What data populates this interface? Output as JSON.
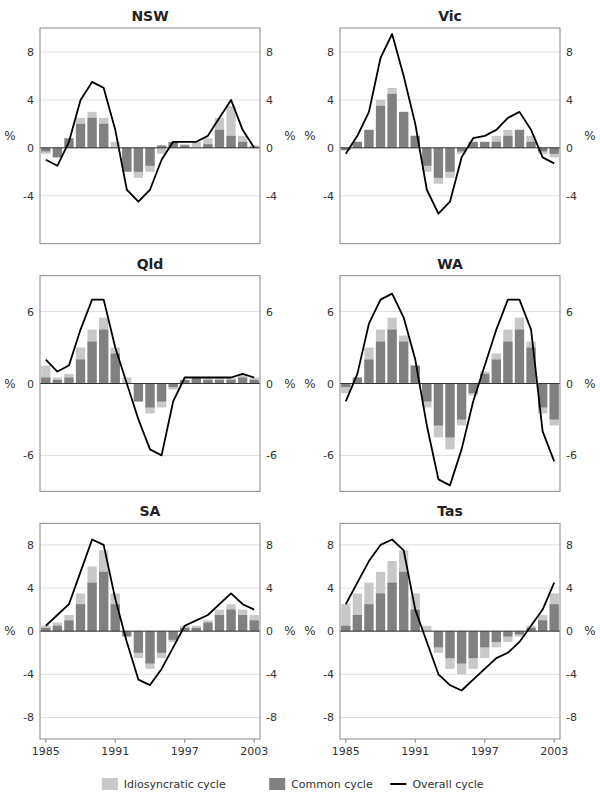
{
  "chart_data": [
    {
      "type": "bar",
      "title": "NSW",
      "ylabel": "%",
      "y2label": "%",
      "x": [
        1985,
        1986,
        1987,
        1988,
        1989,
        1990,
        1991,
        1992,
        1993,
        1994,
        1995,
        1996,
        1997,
        1998,
        1999,
        2000,
        2001,
        2002,
        2003
      ],
      "xlim": [
        1984.5,
        2003.5
      ],
      "xticks": [
        1985,
        1991,
        1997,
        2003
      ],
      "ylim": [
        -8,
        10
      ],
      "yticks": [
        -4,
        0,
        4,
        8
      ],
      "y2lim": [
        -8,
        10
      ],
      "y2ticks": [
        -4,
        0,
        4,
        8
      ],
      "grid": true,
      "tick_labels": "y",
      "series": [
        {
          "name": "Idiosyncratic cycle",
          "type": "bar",
          "color": "#c8c8c8",
          "values": [
            -0.5,
            -0.3,
            0.5,
            2.5,
            3.0,
            2.5,
            0.5,
            -1.5,
            -2.5,
            -2.0,
            -0.5,
            0.5,
            0.3,
            0.5,
            0.8,
            2.5,
            3.5,
            1.0,
            0.2
          ]
        },
        {
          "name": "Common cycle",
          "type": "bar",
          "color": "#808080",
          "values": [
            -0.3,
            -0.8,
            0.8,
            2.0,
            2.5,
            2.0,
            0.0,
            -2.0,
            -2.0,
            -1.5,
            0.2,
            0.5,
            0.2,
            0.0,
            0.3,
            1.5,
            1.0,
            0.5,
            0.1
          ]
        },
        {
          "name": "Overall cycle",
          "type": "line",
          "color": "#000000",
          "values": [
            -1.0,
            -1.5,
            0.5,
            4.0,
            5.5,
            5.0,
            1.5,
            -3.5,
            -4.5,
            -3.5,
            -1.0,
            0.5,
            0.5,
            0.5,
            1.0,
            2.5,
            4.0,
            1.5,
            0.0
          ]
        }
      ]
    },
    {
      "type": "bar",
      "title": "Vic",
      "ylabel": "%",
      "y2label": "%",
      "x": [
        1985,
        1986,
        1987,
        1988,
        1989,
        1990,
        1991,
        1992,
        1993,
        1994,
        1995,
        1996,
        1997,
        1998,
        1999,
        2000,
        2001,
        2002,
        2003
      ],
      "xlim": [
        1984.5,
        2003.5
      ],
      "xticks": [
        1985,
        1991,
        1997,
        2003
      ],
      "ylim": [
        -8,
        10
      ],
      "yticks": [
        -4,
        0,
        4,
        8
      ],
      "y2lim": [
        -8,
        10
      ],
      "y2ticks": [
        -4,
        0,
        4,
        8
      ],
      "grid": true,
      "tick_labels": "y",
      "series": [
        {
          "name": "Idiosyncratic cycle",
          "type": "bar",
          "color": "#c8c8c8",
          "values": [
            -0.2,
            0.5,
            1.5,
            4.0,
            5.0,
            3.0,
            1.0,
            -2.0,
            -3.0,
            -2.5,
            -0.5,
            0.3,
            0.5,
            1.0,
            1.5,
            1.5,
            1.0,
            -0.5,
            -0.8
          ]
        },
        {
          "name": "Common cycle",
          "type": "bar",
          "color": "#808080",
          "values": [
            -0.2,
            0.5,
            1.5,
            3.5,
            4.5,
            3.0,
            1.0,
            -1.5,
            -2.5,
            -2.0,
            -0.3,
            0.5,
            0.5,
            0.5,
            1.0,
            1.5,
            0.5,
            -0.3,
            -0.5
          ]
        },
        {
          "name": "Overall cycle",
          "type": "line",
          "color": "#000000",
          "values": [
            -0.5,
            1.0,
            3.0,
            7.5,
            9.5,
            6.0,
            2.0,
            -3.5,
            -5.5,
            -4.5,
            -0.8,
            0.8,
            1.0,
            1.5,
            2.5,
            3.0,
            1.5,
            -0.8,
            -1.3
          ]
        }
      ]
    },
    {
      "type": "bar",
      "title": "Qld",
      "ylabel": "%",
      "y2label": "%",
      "x": [
        1985,
        1986,
        1987,
        1988,
        1989,
        1990,
        1991,
        1992,
        1993,
        1994,
        1995,
        1996,
        1997,
        1998,
        1999,
        2000,
        2001,
        2002,
        2003
      ],
      "xlim": [
        1984.5,
        2003.5
      ],
      "xticks": [
        1985,
        1991,
        1997,
        2003
      ],
      "ylim": [
        -9,
        9
      ],
      "yticks": [
        -6,
        0,
        6
      ],
      "y2lim": [
        -9,
        9
      ],
      "y2ticks": [
        -6,
        0,
        6
      ],
      "grid": true,
      "tick_labels": "y",
      "series": [
        {
          "name": "Idiosyncratic cycle",
          "type": "bar",
          "color": "#c8c8c8",
          "values": [
            1.5,
            0.5,
            0.8,
            3.0,
            4.5,
            5.5,
            3.0,
            0.5,
            -1.5,
            -2.5,
            -2.0,
            -0.5,
            0.3,
            0.5,
            0.5,
            0.5,
            0.5,
            0.8,
            0.5
          ]
        },
        {
          "name": "Common cycle",
          "type": "bar",
          "color": "#808080",
          "values": [
            0.5,
            0.3,
            0.5,
            2.0,
            3.5,
            4.5,
            2.5,
            0.0,
            -1.5,
            -2.0,
            -1.5,
            -0.3,
            0.3,
            0.5,
            0.3,
            0.3,
            0.3,
            0.5,
            0.3
          ]
        },
        {
          "name": "Overall cycle",
          "type": "line",
          "color": "#000000",
          "values": [
            2.0,
            1.0,
            1.5,
            4.5,
            7.0,
            7.0,
            3.0,
            0.0,
            -3.0,
            -5.5,
            -6.0,
            -1.5,
            0.5,
            0.5,
            0.5,
            0.5,
            0.5,
            0.8,
            0.5
          ]
        }
      ]
    },
    {
      "type": "bar",
      "title": "WA",
      "ylabel": "%",
      "y2label": "%",
      "x": [
        1985,
        1986,
        1987,
        1988,
        1989,
        1990,
        1991,
        1992,
        1993,
        1994,
        1995,
        1996,
        1997,
        1998,
        1999,
        2000,
        2001,
        2002,
        2003
      ],
      "xlim": [
        1984.5,
        2003.5
      ],
      "xticks": [
        1985,
        1991,
        1997,
        2003
      ],
      "ylim": [
        -9,
        9
      ],
      "yticks": [
        -6,
        0,
        6
      ],
      "y2lim": [
        -9,
        9
      ],
      "y2ticks": [
        -6,
        0,
        6
      ],
      "grid": true,
      "tick_labels": "y",
      "series": [
        {
          "name": "Idiosyncratic cycle",
          "type": "bar",
          "color": "#c8c8c8",
          "values": [
            -0.8,
            0.5,
            3.0,
            4.5,
            5.5,
            4.0,
            1.5,
            -2.0,
            -4.5,
            -5.5,
            -3.5,
            -1.0,
            1.0,
            2.5,
            4.5,
            5.5,
            3.5,
            -2.5,
            -3.5
          ]
        },
        {
          "name": "Common cycle",
          "type": "bar",
          "color": "#808080",
          "values": [
            -0.3,
            0.5,
            2.0,
            3.5,
            4.5,
            3.5,
            1.5,
            -1.5,
            -3.5,
            -4.5,
            -3.0,
            -0.8,
            0.8,
            2.0,
            3.5,
            4.5,
            3.0,
            -2.0,
            -3.0
          ]
        },
        {
          "name": "Overall cycle",
          "type": "line",
          "color": "#000000",
          "values": [
            -1.5,
            0.8,
            5.0,
            7.0,
            7.5,
            5.5,
            2.0,
            -3.5,
            -8.0,
            -8.5,
            -5.5,
            -1.5,
            1.5,
            4.5,
            7.0,
            7.0,
            4.5,
            -4.0,
            -6.5
          ]
        }
      ]
    },
    {
      "type": "bar",
      "title": "SA",
      "ylabel": "%",
      "y2label": "%",
      "x": [
        1985,
        1986,
        1987,
        1988,
        1989,
        1990,
        1991,
        1992,
        1993,
        1994,
        1995,
        1996,
        1997,
        1998,
        1999,
        2000,
        2001,
        2002,
        2003
      ],
      "xlim": [
        1984.5,
        2003.5
      ],
      "xticks": [
        1985,
        1991,
        1997,
        2003
      ],
      "ylim": [
        -10,
        10
      ],
      "yticks": [
        -8,
        -4,
        0,
        4,
        8
      ],
      "y2lim": [
        -10,
        10
      ],
      "y2ticks": [
        -8,
        -4,
        0,
        4,
        8
      ],
      "grid": true,
      "series": [
        {
          "name": "Idiosyncratic cycle",
          "type": "bar",
          "color": "#c8c8c8",
          "values": [
            0.5,
            0.8,
            1.5,
            3.5,
            6.0,
            7.5,
            3.5,
            0.0,
            -2.5,
            -3.5,
            -2.5,
            -1.0,
            0.5,
            0.5,
            1.0,
            2.0,
            2.5,
            2.0,
            1.5
          ]
        },
        {
          "name": "Common cycle",
          "type": "bar",
          "color": "#808080",
          "values": [
            0.3,
            0.5,
            1.0,
            2.5,
            4.5,
            5.5,
            2.5,
            -0.5,
            -2.0,
            -3.0,
            -2.0,
            -0.8,
            0.3,
            0.3,
            0.8,
            1.5,
            2.0,
            1.5,
            1.0
          ]
        },
        {
          "name": "Overall cycle",
          "type": "line",
          "color": "#000000",
          "values": [
            0.5,
            1.5,
            2.5,
            5.5,
            8.5,
            8.0,
            3.0,
            -1.0,
            -4.5,
            -5.0,
            -3.5,
            -1.5,
            0.5,
            1.0,
            1.5,
            2.5,
            3.5,
            2.5,
            2.0
          ]
        }
      ]
    },
    {
      "type": "bar",
      "title": "Tas",
      "ylabel": "%",
      "y2label": "%",
      "x": [
        1985,
        1986,
        1987,
        1988,
        1989,
        1990,
        1991,
        1992,
        1993,
        1994,
        1995,
        1996,
        1997,
        1998,
        1999,
        2000,
        2001,
        2002,
        2003
      ],
      "xlim": [
        1984.5,
        2003.5
      ],
      "xticks": [
        1985,
        1991,
        1997,
        2003
      ],
      "ylim": [
        -10,
        10
      ],
      "yticks": [
        -8,
        -4,
        0,
        4,
        8
      ],
      "y2lim": [
        -10,
        10
      ],
      "y2ticks": [
        -8,
        -4,
        0,
        4,
        8
      ],
      "grid": true,
      "legend": "bottom",
      "series": [
        {
          "name": "Idiosyncratic cycle",
          "type": "bar",
          "color": "#c8c8c8",
          "values": [
            2.5,
            3.5,
            4.5,
            5.5,
            6.5,
            7.5,
            3.5,
            0.5,
            -2.0,
            -3.5,
            -4.0,
            -3.5,
            -2.5,
            -1.5,
            -1.0,
            -0.5,
            0.5,
            1.5,
            3.5
          ]
        },
        {
          "name": "Common cycle",
          "type": "bar",
          "color": "#808080",
          "values": [
            0.5,
            1.5,
            2.5,
            3.5,
            4.5,
            5.5,
            2.0,
            0.0,
            -1.5,
            -2.5,
            -3.0,
            -2.5,
            -1.5,
            -1.0,
            -0.5,
            -0.3,
            0.3,
            1.0,
            2.5
          ]
        },
        {
          "name": "Overall cycle",
          "type": "line",
          "color": "#000000",
          "values": [
            2.5,
            4.5,
            6.5,
            8.0,
            8.5,
            7.5,
            2.0,
            -1.0,
            -4.0,
            -5.0,
            -5.5,
            -4.5,
            -3.5,
            -2.5,
            -2.0,
            -1.0,
            0.5,
            2.0,
            4.5
          ]
        }
      ]
    }
  ]
}
